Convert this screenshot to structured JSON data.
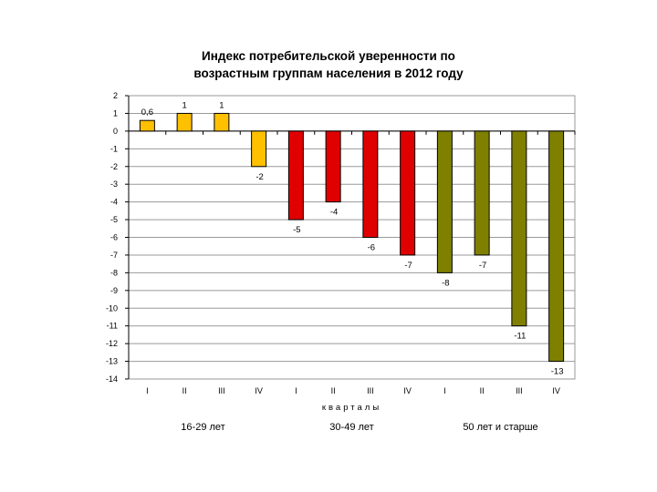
{
  "chart_data": {
    "type": "bar",
    "title_line1": "Индекс потребительской уверенности по",
    "title_line2": "возрастным группам населения в 2012 году",
    "xlabel": "кварталы",
    "ylabel": "",
    "ylim": [
      -14,
      2
    ],
    "y_ticks": [
      "2",
      "1",
      "0",
      "-1",
      "-2",
      "-3",
      "-4",
      "-5",
      "-6",
      "-7",
      "-8",
      "-9",
      "-10",
      "-11",
      "-12",
      "-13",
      "-14"
    ],
    "grid": true,
    "categories": [
      "I",
      "II",
      "III",
      "IV",
      "I",
      "II",
      "III",
      "IV",
      "I",
      "II",
      "III",
      "IV"
    ],
    "values": [
      0.6,
      1,
      1,
      -2,
      -5,
      -4,
      -6,
      -7,
      -8,
      -7,
      -11,
      -13
    ],
    "data_labels": [
      "0,6",
      "1",
      "1",
      "-2",
      "-5",
      "-4",
      "-6",
      "-7",
      "-8",
      "-7",
      "-11",
      "-13"
    ],
    "bar_colors": [
      "#FFC000",
      "#FFC000",
      "#FFC000",
      "#FFC000",
      "#E00000",
      "#E00000",
      "#E00000",
      "#E00000",
      "#808000",
      "#808000",
      "#808000",
      "#808000"
    ],
    "groups": [
      {
        "label": "16-29 лет",
        "color": "#FFC000"
      },
      {
        "label": "30-49 лет",
        "color": "#E00000"
      },
      {
        "label": "50 лет и старше",
        "color": "#808000"
      }
    ]
  }
}
